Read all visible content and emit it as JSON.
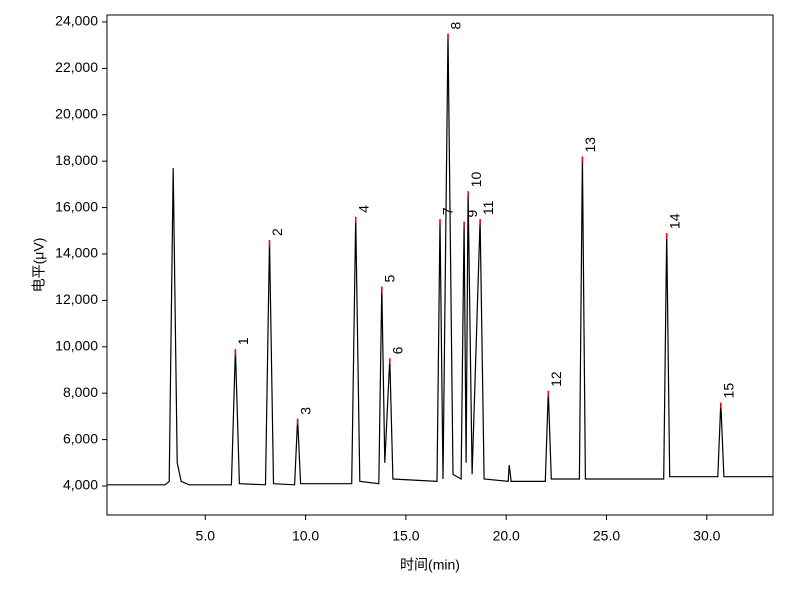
{
  "chart_data": {
    "type": "line",
    "x_label": "时间(min)",
    "y_label": "电平(μV)",
    "xlim": [
      0.1,
      33.3
    ],
    "ylim": [
      2750,
      24300
    ],
    "xticks": [
      {
        "value": 5,
        "label": "5.0"
      },
      {
        "value": 10,
        "label": "10.0"
      },
      {
        "value": 15,
        "label": "15.0"
      },
      {
        "value": 20,
        "label": "20.0"
      },
      {
        "value": 25,
        "label": "25.0"
      },
      {
        "value": 30,
        "label": "30.0"
      }
    ],
    "yticks": [
      {
        "value": 4000,
        "label": "4,000"
      },
      {
        "value": 6000,
        "label": "6,000"
      },
      {
        "value": 8000,
        "label": "8,000"
      },
      {
        "value": 10000,
        "label": "10,000"
      },
      {
        "value": 12000,
        "label": "12,000"
      },
      {
        "value": 14000,
        "label": "14,000"
      },
      {
        "value": 16000,
        "label": "16,000"
      },
      {
        "value": 18000,
        "label": "18,000"
      },
      {
        "value": 20000,
        "label": "20,000"
      },
      {
        "value": 22000,
        "label": "22,000"
      },
      {
        "value": 24000,
        "label": "24,000"
      }
    ],
    "x": [
      0.1,
      3.0,
      3.2,
      3.4,
      3.6,
      3.8,
      4.2,
      6.3,
      6.5,
      6.7,
      8.0,
      8.2,
      8.4,
      9.45,
      9.6,
      9.75,
      12.3,
      12.5,
      12.7,
      13.65,
      13.8,
      13.95,
      14.2,
      14.35,
      16.55,
      16.7,
      16.85,
      17.1,
      17.35,
      17.75,
      17.9,
      18.0,
      18.1,
      18.3,
      18.7,
      18.9,
      20.1,
      20.15,
      20.25,
      21.95,
      22.1,
      22.25,
      23.65,
      23.8,
      23.95,
      27.85,
      28.0,
      28.15,
      30.55,
      30.7,
      30.85,
      33.3
    ],
    "series": [
      {
        "color": "#000000",
        "values": [
          4050,
          4050,
          4200,
          17700,
          5000,
          4200,
          4050,
          4050,
          9900,
          4100,
          4050,
          14600,
          4100,
          4050,
          6900,
          4100,
          4100,
          15600,
          4200,
          4100,
          12600,
          5000,
          9500,
          4300,
          4200,
          15500,
          4300,
          23500,
          4500,
          4300,
          15400,
          5000,
          16700,
          4500,
          15500,
          4300,
          4200,
          4900,
          4200,
          4200,
          8100,
          4300,
          4300,
          18200,
          4300,
          4300,
          14900,
          4400,
          4400,
          7600,
          4400,
          4400
        ]
      }
    ],
    "peaks": [
      {
        "label": "1",
        "x": 6.5,
        "y": 9900
      },
      {
        "label": "2",
        "x": 8.2,
        "y": 14600
      },
      {
        "label": "3",
        "x": 9.6,
        "y": 6900
      },
      {
        "label": "4",
        "x": 12.5,
        "y": 15600
      },
      {
        "label": "5",
        "x": 13.8,
        "y": 12600
      },
      {
        "label": "6",
        "x": 14.2,
        "y": 9500
      },
      {
        "label": "7",
        "x": 16.7,
        "y": 15500
      },
      {
        "label": "8",
        "x": 17.1,
        "y": 23500
      },
      {
        "label": "9",
        "x": 17.9,
        "y": 15400
      },
      {
        "label": "10",
        "x": 18.1,
        "y": 16700
      },
      {
        "label": "11",
        "x": 18.7,
        "y": 15500
      },
      {
        "label": "12",
        "x": 22.1,
        "y": 8100
      },
      {
        "label": "13",
        "x": 23.8,
        "y": 18200
      },
      {
        "label": "14",
        "x": 28.0,
        "y": 14900
      },
      {
        "label": "15",
        "x": 30.7,
        "y": 7600
      }
    ],
    "peak_color": "#ff0000"
  }
}
